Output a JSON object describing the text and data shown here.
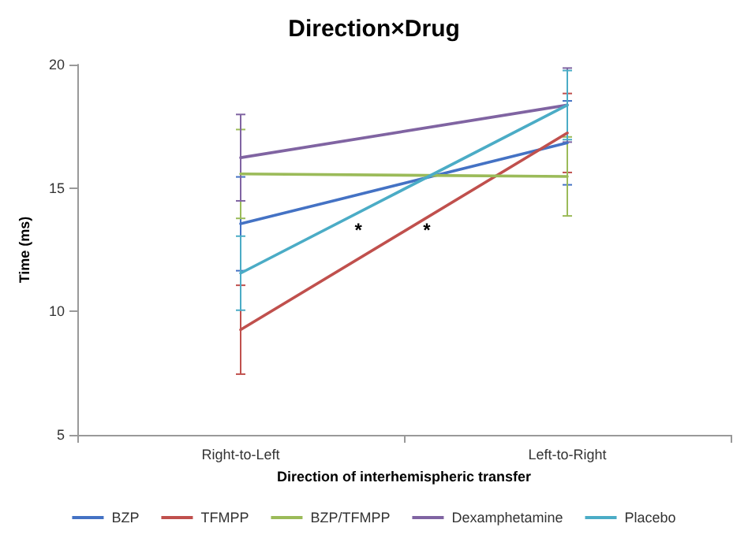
{
  "chart_data": {
    "type": "line",
    "title": "Direction×Drug",
    "xlabel": "Direction of interhemispheric transfer",
    "ylabel": "Time (ms)",
    "categories": [
      "Right-to-Left",
      "Left-to-Right"
    ],
    "series": [
      {
        "name": "BZP",
        "color": "#4472c4",
        "values": [
          13.55,
          16.83
        ],
        "errors": [
          1.9,
          1.7
        ]
      },
      {
        "name": "TFMPP",
        "color": "#c0504d",
        "values": [
          9.26,
          17.23
        ],
        "errors": [
          1.8,
          1.6
        ]
      },
      {
        "name": "BZP/TFMPP",
        "color": "#9bbb59",
        "values": [
          15.57,
          15.47
        ],
        "errors": [
          1.8,
          1.6
        ]
      },
      {
        "name": "Dexamphetamine",
        "color": "#8064a2",
        "values": [
          16.23,
          18.36
        ],
        "errors": [
          1.75,
          1.5
        ]
      },
      {
        "name": "Placebo",
        "color": "#4bacc6",
        "values": [
          11.55,
          18.36
        ],
        "errors": [
          1.5,
          1.4
        ]
      }
    ],
    "ylim": [
      5,
      20
    ],
    "yticks": [
      5,
      10,
      15,
      20
    ],
    "grid": false,
    "legend": "bottom",
    "marker": "none",
    "line_style": "solid",
    "annotations": [
      "*",
      "*"
    ]
  }
}
